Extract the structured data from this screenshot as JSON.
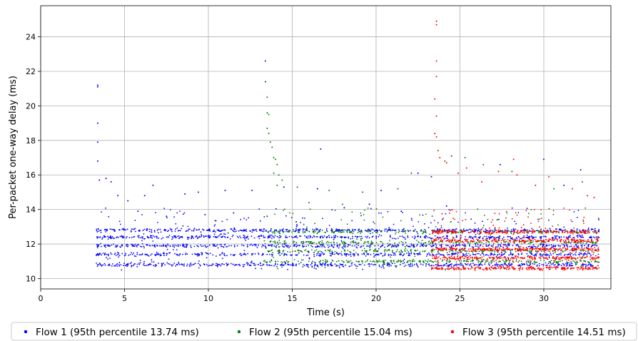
{
  "chart_data": {
    "type": "scatter",
    "xlabel": "Time (s)",
    "ylabel": "Per-packet one-way delay (ms)",
    "xlim": [
      0,
      34
    ],
    "ylim": [
      9.4,
      25.8
    ],
    "xticks": [
      0,
      5,
      10,
      15,
      20,
      25,
      30
    ],
    "yticks": [
      10,
      12,
      14,
      16,
      18,
      20,
      22,
      24
    ],
    "grid": true,
    "legend_position": "bottom",
    "series": [
      {
        "name": "Flow 1 (95th percentile 13.74 ms)",
        "color": "#0000ff",
        "x_range": [
          3.3,
          33.3
        ],
        "bands": [
          10.8,
          11.4,
          11.9,
          12.4,
          12.8
        ],
        "points": [
          [
            3.4,
            21.2
          ],
          [
            3.4,
            21.1
          ],
          [
            3.4,
            19.0
          ],
          [
            3.4,
            17.9
          ],
          [
            3.4,
            16.8
          ],
          [
            3.5,
            15.7
          ],
          [
            3.9,
            15.8
          ],
          [
            4.2,
            15.6
          ],
          [
            4.6,
            14.8
          ],
          [
            5.2,
            14.5
          ],
          [
            6.2,
            14.8
          ],
          [
            6.7,
            15.4
          ],
          [
            8.6,
            14.9
          ],
          [
            9.4,
            15.0
          ],
          [
            11.0,
            15.1
          ],
          [
            12.6,
            15.1
          ],
          [
            13.4,
            22.6
          ],
          [
            13.4,
            21.4
          ],
          [
            14.5,
            15.3
          ],
          [
            16.5,
            15.2
          ],
          [
            16.7,
            17.5
          ],
          [
            20.3,
            15.1
          ],
          [
            22.5,
            16.1
          ],
          [
            23.3,
            15.9
          ],
          [
            27.4,
            16.6
          ],
          [
            30.0,
            16.9
          ],
          [
            31.2,
            15.4
          ],
          [
            32.2,
            16.3
          ],
          [
            5.8,
            13.9
          ],
          [
            7.5,
            13.6
          ],
          [
            9.8,
            13.7
          ],
          [
            11.5,
            13.8
          ],
          [
            18.1,
            14.1
          ],
          [
            19.6,
            14.3
          ],
          [
            21.5,
            13.9
          ],
          [
            24.2,
            14.2
          ]
        ]
      },
      {
        "name": "Flow 2 (95th percentile 15.04 ms)",
        "color": "#008000",
        "x_range": [
          13.3,
          33.3
        ],
        "bands": [
          11.0,
          11.6,
          12.1,
          12.7
        ],
        "points": [
          [
            13.4,
            21.4
          ],
          [
            13.5,
            20.5
          ],
          [
            13.5,
            19.6
          ],
          [
            13.6,
            19.5
          ],
          [
            13.5,
            18.7
          ],
          [
            13.6,
            18.4
          ],
          [
            13.7,
            17.9
          ],
          [
            13.8,
            17.6
          ],
          [
            13.9,
            17.0
          ],
          [
            14.0,
            16.9
          ],
          [
            14.1,
            16.6
          ],
          [
            13.9,
            16.1
          ],
          [
            14.2,
            16.0
          ],
          [
            14.4,
            15.7
          ],
          [
            14.1,
            15.4
          ],
          [
            15.3,
            15.3
          ],
          [
            17.2,
            15.1
          ],
          [
            19.2,
            15.0
          ],
          [
            21.3,
            15.2
          ],
          [
            22.1,
            16.1
          ],
          [
            24.1,
            16.8
          ],
          [
            24.5,
            17.1
          ],
          [
            25.3,
            17.0
          ],
          [
            26.4,
            16.6
          ],
          [
            28.1,
            16.2
          ],
          [
            30.6,
            15.2
          ],
          [
            32.3,
            15.6
          ],
          [
            16.0,
            14.4
          ],
          [
            18.0,
            14.3
          ]
        ]
      },
      {
        "name": "Flow 3 (95th percentile 14.51 ms)",
        "color": "#ff0000",
        "x_range": [
          23.3,
          33.3
        ],
        "bands": [
          10.6,
          11.2,
          11.7,
          12.2,
          12.7
        ],
        "points": [
          [
            23.6,
            24.9
          ],
          [
            23.6,
            24.7
          ],
          [
            23.6,
            22.6
          ],
          [
            23.6,
            21.7
          ],
          [
            23.5,
            20.4
          ],
          [
            23.6,
            19.4
          ],
          [
            23.5,
            18.4
          ],
          [
            23.6,
            18.2
          ],
          [
            23.7,
            17.4
          ],
          [
            23.8,
            17.0
          ],
          [
            24.2,
            16.7
          ],
          [
            24.9,
            16.1
          ],
          [
            25.4,
            16.4
          ],
          [
            26.3,
            15.6
          ],
          [
            27.3,
            16.2
          ],
          [
            28.2,
            16.9
          ],
          [
            28.4,
            16.0
          ],
          [
            29.5,
            15.4
          ],
          [
            30.3,
            15.9
          ],
          [
            31.7,
            15.2
          ],
          [
            32.6,
            14.8
          ],
          [
            33.0,
            14.7
          ]
        ]
      }
    ]
  }
}
